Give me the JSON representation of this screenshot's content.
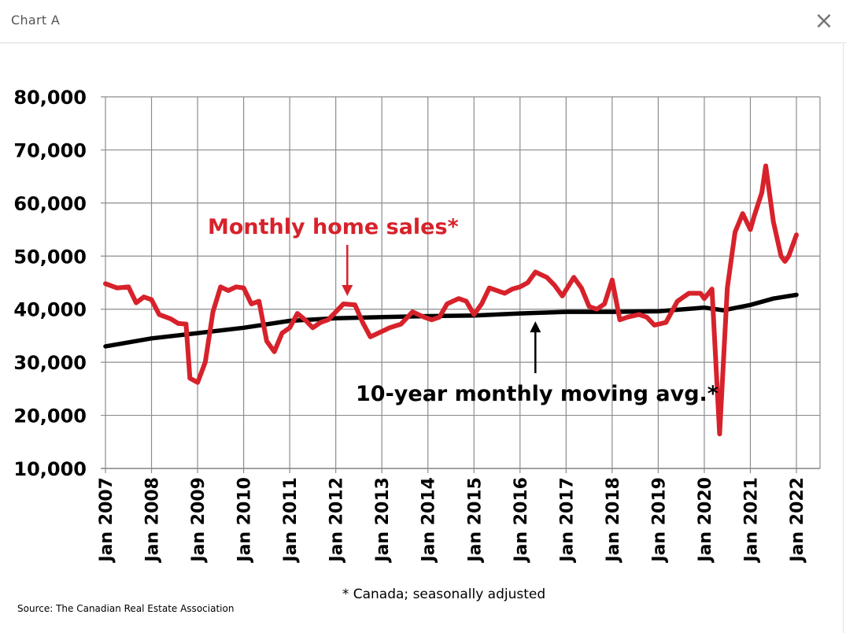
{
  "modal": {
    "title": "Chart A",
    "close_label": "×"
  },
  "footnote": "* Canada; seasonally adjusted",
  "source": "Source: The Canadian Real Estate Association",
  "chart_data": {
    "type": "line",
    "title": "",
    "xlabel": "",
    "ylabel": "",
    "ylim": [
      10000,
      80000
    ],
    "xlim": [
      "2007-01",
      "2022-01"
    ],
    "grid": true,
    "y_ticks": [
      "10,000",
      "20,000",
      "30,000",
      "40,000",
      "50,000",
      "60,000",
      "70,000",
      "80,000"
    ],
    "x_ticks": [
      "Jan 2007",
      "Jan 2008",
      "Jan 2009",
      "Jan 2010",
      "Jan 2011",
      "Jan 2012",
      "Jan 2013",
      "Jan 2014",
      "Jan 2015",
      "Jan 2016",
      "Jan 2017",
      "Jan 2018",
      "Jan 2019",
      "Jan 2020",
      "Jan 2021",
      "Jan 2022"
    ],
    "colors": {
      "sales": "#d7222b",
      "average": "#000000"
    },
    "annotations": [
      {
        "text": "Monthly home sales*",
        "series": "sales",
        "color": "#d7222b",
        "x": "2012-04",
        "y": 41000
      },
      {
        "text": "10-year monthly moving avg.*",
        "series": "average",
        "color": "#000000",
        "x": "2016-05",
        "y": 39200
      }
    ],
    "series": [
      {
        "id": "sales",
        "points": [
          [
            "2007-01",
            44800
          ],
          [
            "2007-04",
            44000
          ],
          [
            "2007-07",
            44200
          ],
          [
            "2007-09",
            41200
          ],
          [
            "2007-11",
            42300
          ],
          [
            "2008-01",
            41800
          ],
          [
            "2008-03",
            39000
          ],
          [
            "2008-06",
            38200
          ],
          [
            "2008-08",
            37300
          ],
          [
            "2008-10",
            37200
          ],
          [
            "2008-11",
            27000
          ],
          [
            "2009-01",
            26200
          ],
          [
            "2009-03",
            30000
          ],
          [
            "2009-05",
            39500
          ],
          [
            "2009-07",
            44200
          ],
          [
            "2009-09",
            43500
          ],
          [
            "2009-11",
            44200
          ],
          [
            "2010-01",
            44000
          ],
          [
            "2010-03",
            41000
          ],
          [
            "2010-05",
            41500
          ],
          [
            "2010-07",
            34000
          ],
          [
            "2010-09",
            32000
          ],
          [
            "2010-11",
            35500
          ],
          [
            "2011-01",
            36500
          ],
          [
            "2011-03",
            39200
          ],
          [
            "2011-05",
            38000
          ],
          [
            "2011-07",
            36500
          ],
          [
            "2011-09",
            37500
          ],
          [
            "2011-11",
            38000
          ],
          [
            "2012-01",
            39500
          ],
          [
            "2012-03",
            41000
          ],
          [
            "2012-06",
            40800
          ],
          [
            "2012-08",
            37500
          ],
          [
            "2012-10",
            34800
          ],
          [
            "2013-01",
            35800
          ],
          [
            "2013-03",
            36500
          ],
          [
            "2013-06",
            37200
          ],
          [
            "2013-09",
            39500
          ],
          [
            "2013-12",
            38500
          ],
          [
            "2014-02",
            38000
          ],
          [
            "2014-04",
            38500
          ],
          [
            "2014-06",
            41000
          ],
          [
            "2014-09",
            42000
          ],
          [
            "2014-11",
            41500
          ],
          [
            "2015-01",
            39000
          ],
          [
            "2015-03",
            41000
          ],
          [
            "2015-05",
            44000
          ],
          [
            "2015-07",
            43500
          ],
          [
            "2015-09",
            43000
          ],
          [
            "2015-11",
            43800
          ],
          [
            "2016-01",
            44200
          ],
          [
            "2016-03",
            45000
          ],
          [
            "2016-05",
            47000
          ],
          [
            "2016-08",
            46000
          ],
          [
            "2016-10",
            44500
          ],
          [
            "2016-12",
            42500
          ],
          [
            "2017-03",
            46000
          ],
          [
            "2017-05",
            44000
          ],
          [
            "2017-07",
            40500
          ],
          [
            "2017-09",
            40000
          ],
          [
            "2017-11",
            41000
          ],
          [
            "2018-01",
            45500
          ],
          [
            "2018-03",
            38000
          ],
          [
            "2018-05",
            38500
          ],
          [
            "2018-08",
            39000
          ],
          [
            "2018-10",
            38500
          ],
          [
            "2018-12",
            37000
          ],
          [
            "2019-03",
            37500
          ],
          [
            "2019-06",
            41500
          ],
          [
            "2019-09",
            43000
          ],
          [
            "2019-12",
            43000
          ],
          [
            "2020-01",
            42000
          ],
          [
            "2020-03",
            43800
          ],
          [
            "2020-05",
            16500
          ],
          [
            "2020-07",
            44000
          ],
          [
            "2020-09",
            54500
          ],
          [
            "2020-11",
            58000
          ],
          [
            "2021-01",
            55000
          ],
          [
            "2021-02",
            57500
          ],
          [
            "2021-04",
            62000
          ],
          [
            "2021-05",
            67000
          ],
          [
            "2021-07",
            56500
          ],
          [
            "2021-09",
            50000
          ],
          [
            "2021-10",
            49000
          ],
          [
            "2021-11",
            50000
          ],
          [
            "2022-01",
            54000
          ]
        ]
      },
      {
        "id": "average",
        "points": [
          [
            "2007-01",
            33000
          ],
          [
            "2008-01",
            34500
          ],
          [
            "2009-01",
            35500
          ],
          [
            "2010-01",
            36500
          ],
          [
            "2011-01",
            37800
          ],
          [
            "2012-01",
            38300
          ],
          [
            "2013-01",
            38500
          ],
          [
            "2014-01",
            38700
          ],
          [
            "2015-01",
            38800
          ],
          [
            "2016-01",
            39200
          ],
          [
            "2017-01",
            39500
          ],
          [
            "2018-01",
            39500
          ],
          [
            "2019-01",
            39600
          ],
          [
            "2020-01",
            40300
          ],
          [
            "2020-06",
            39800
          ],
          [
            "2021-01",
            40800
          ],
          [
            "2021-07",
            42000
          ],
          [
            "2022-01",
            42700
          ]
        ]
      }
    ]
  }
}
